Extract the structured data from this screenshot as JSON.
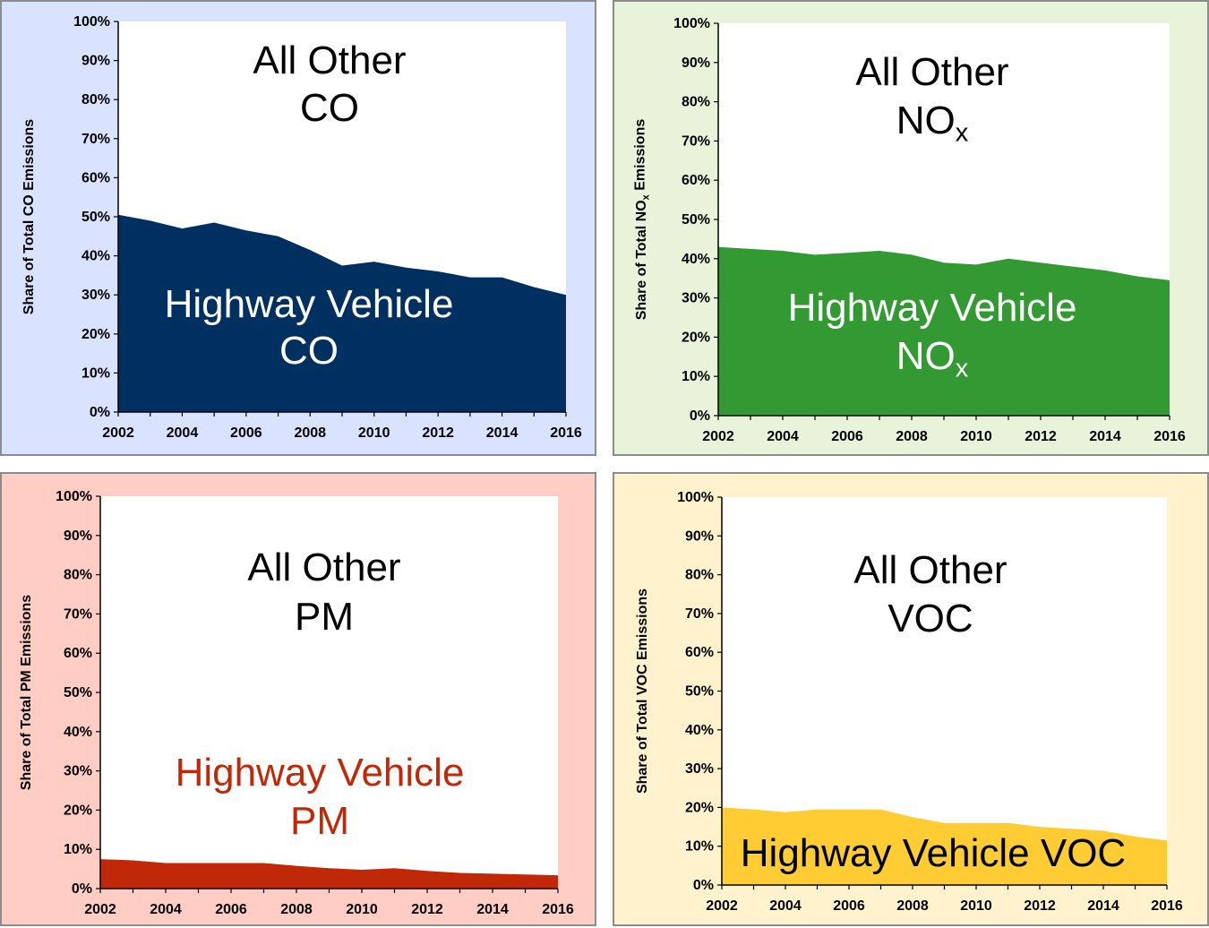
{
  "chart_data": [
    {
      "type": "area",
      "x": [
        2002,
        2003,
        2004,
        2005,
        2006,
        2007,
        2008,
        2009,
        2010,
        2011,
        2012,
        2013,
        2014,
        2015,
        2016
      ],
      "values": [
        50.5,
        49,
        47,
        48.5,
        46.5,
        45,
        41.5,
        37.5,
        38.5,
        37,
        36,
        34.5,
        34.5,
        32,
        30
      ],
      "ylabel": "Share of Total CO Emissions",
      "ylim": [
        0,
        100
      ],
      "yticks": [
        "0%",
        "10%",
        "20%",
        "30%",
        "40%",
        "50%",
        "60%",
        "70%",
        "80%",
        "90%",
        "100%"
      ],
      "xticks": [
        "2002",
        "2004",
        "2006",
        "2008",
        "2010",
        "2012",
        "2014",
        "2016"
      ],
      "upper_label": [
        "All Other",
        "CO"
      ],
      "area_label": [
        "Highway Vehicle",
        "CO"
      ],
      "fill_color": "#003060",
      "panel_bg": "#d9e3ff",
      "area_label_color": "#ffffff"
    },
    {
      "type": "area",
      "x": [
        2002,
        2003,
        2004,
        2005,
        2006,
        2007,
        2008,
        2009,
        2010,
        2011,
        2012,
        2013,
        2014,
        2015,
        2016
      ],
      "values": [
        43,
        42.5,
        42,
        41,
        41.5,
        42,
        41,
        39,
        38.5,
        40,
        39,
        38,
        37,
        35.5,
        34.5
      ],
      "ylabel": "Share of Total NOx Emissions",
      "ylim": [
        0,
        100
      ],
      "yticks": [
        "0%",
        "10%",
        "20%",
        "30%",
        "40%",
        "50%",
        "60%",
        "70%",
        "80%",
        "90%",
        "100%"
      ],
      "xticks": [
        "2002",
        "2004",
        "2006",
        "2008",
        "2010",
        "2012",
        "2014",
        "2016"
      ],
      "upper_label": [
        "All Other",
        "NOx"
      ],
      "area_label": [
        "Highway Vehicle",
        "NOx"
      ],
      "fill_color": "#339933",
      "panel_bg": "#e8f3d9",
      "area_label_color": "#ffffff"
    },
    {
      "type": "area",
      "x": [
        2002,
        2003,
        2004,
        2005,
        2006,
        2007,
        2008,
        2009,
        2010,
        2011,
        2012,
        2013,
        2014,
        2015,
        2016
      ],
      "values": [
        7.5,
        7.2,
        6.5,
        6.5,
        6.5,
        6.5,
        5.8,
        5.2,
        4.8,
        5.2,
        4.5,
        4,
        3.8,
        3.6,
        3.4
      ],
      "ylabel": "Share of Total PM Emissions",
      "ylim": [
        0,
        100
      ],
      "yticks": [
        "0%",
        "10%",
        "20%",
        "30%",
        "40%",
        "50%",
        "60%",
        "70%",
        "80%",
        "90%",
        "100%"
      ],
      "xticks": [
        "2002",
        "2004",
        "2006",
        "2008",
        "2010",
        "2012",
        "2014",
        "2016"
      ],
      "upper_label": [
        "All Other",
        "PM"
      ],
      "area_label": [
        "Highway Vehicle",
        "PM"
      ],
      "fill_color": "#c02808",
      "panel_bg": "#ffcdc3",
      "area_label_color": "#c02808"
    },
    {
      "type": "area",
      "x": [
        2002,
        2003,
        2004,
        2005,
        2006,
        2007,
        2008,
        2009,
        2010,
        2011,
        2012,
        2013,
        2014,
        2015,
        2016
      ],
      "values": [
        20,
        19.5,
        18.8,
        19.5,
        19.5,
        19.5,
        17.5,
        16,
        16,
        16,
        15,
        14.5,
        14,
        12.5,
        11.5
      ],
      "ylabel": "Share of Total VOC Emissions",
      "ylim": [
        0,
        100
      ],
      "yticks": [
        "0%",
        "10%",
        "20%",
        "30%",
        "40%",
        "50%",
        "60%",
        "70%",
        "80%",
        "90%",
        "100%"
      ],
      "xticks": [
        "2002",
        "2004",
        "2006",
        "2008",
        "2010",
        "2012",
        "2014",
        "2016"
      ],
      "upper_label": [
        "All Other",
        "VOC"
      ],
      "area_label": [
        "Highway Vehicle VOC"
      ],
      "fill_color": "#ffcc33",
      "panel_bg": "#fff2cc",
      "area_label_color": "#000000"
    }
  ]
}
